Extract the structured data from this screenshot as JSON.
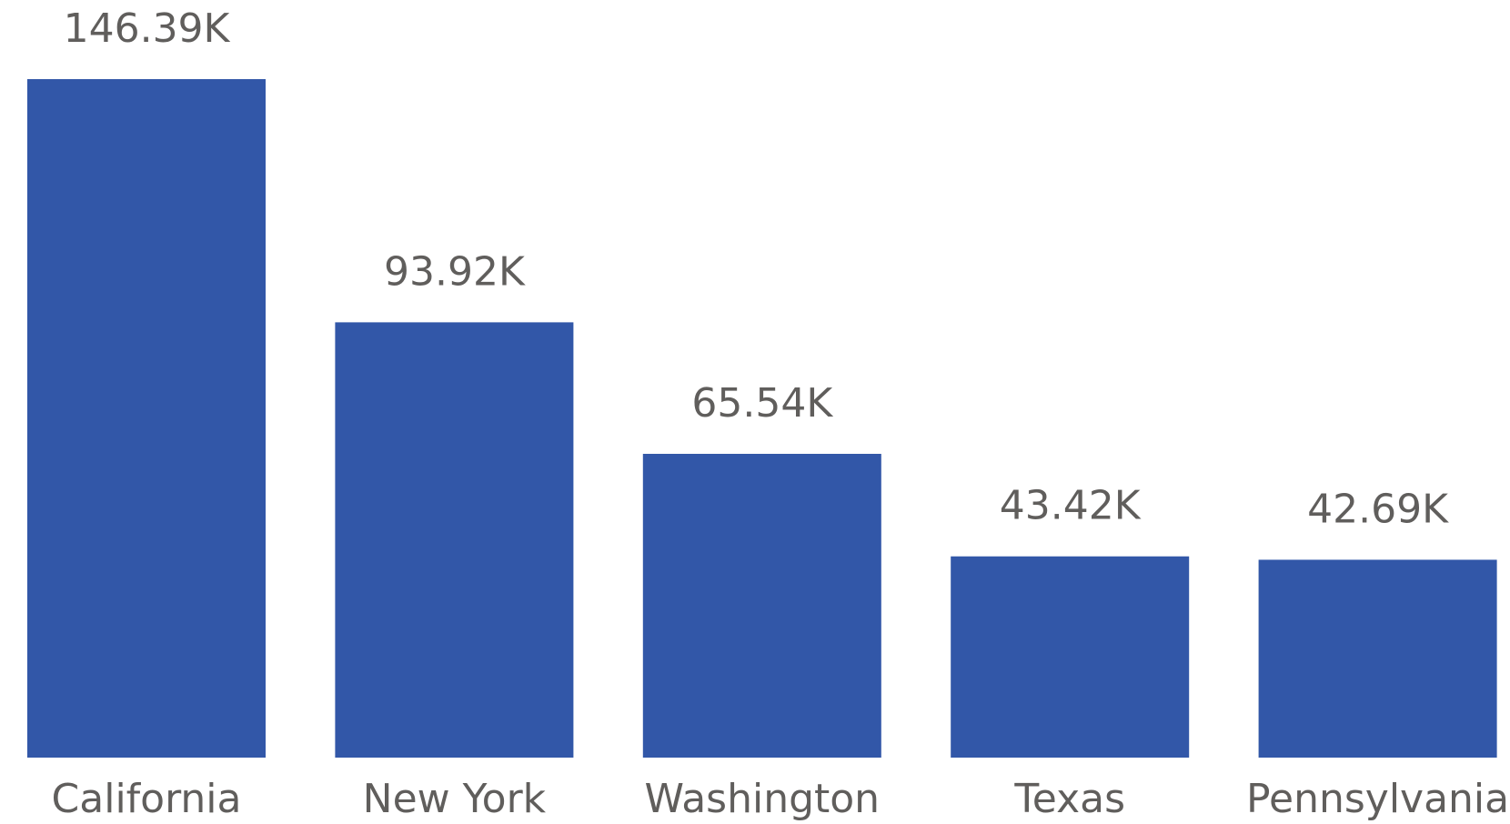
{
  "chart_data": {
    "type": "bar",
    "categories": [
      "California",
      "New York",
      "Washington",
      "Texas",
      "Pennsylvania"
    ],
    "values": [
      146390,
      93920,
      65540,
      43420,
      42690
    ],
    "value_labels": [
      "146.39K",
      "93.92K",
      "65.54K",
      "43.42K",
      "42.69K"
    ],
    "color": "#3257a8"
  }
}
